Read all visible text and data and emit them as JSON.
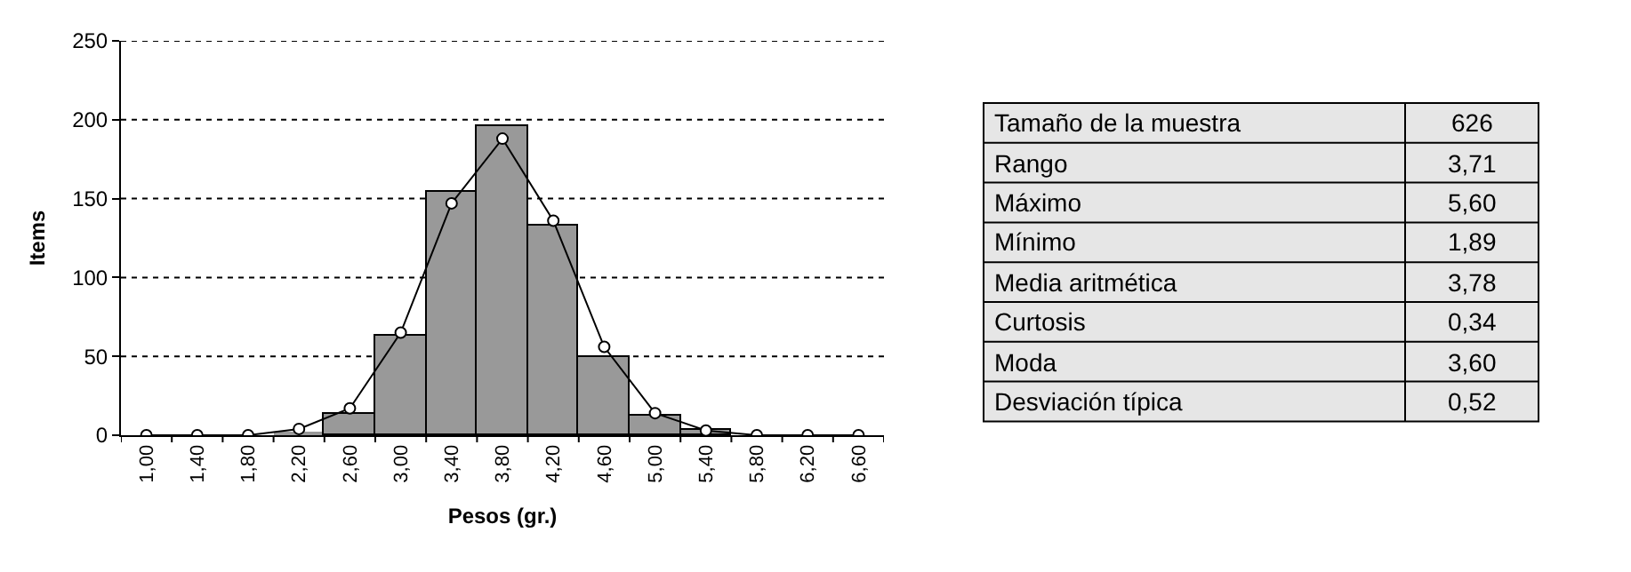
{
  "chart_data": [
    {
      "type": "bar",
      "categories": [
        "1,00",
        "1,40",
        "1,80",
        "2,20",
        "2,60",
        "3,00",
        "3,40",
        "3,80",
        "4,20",
        "4,60",
        "5,00",
        "5,40",
        "5,80",
        "6,20",
        "6,60"
      ],
      "series": [
        {
          "type": "bar",
          "color": "#999999",
          "values": [
            0,
            0,
            null,
            2,
            14,
            63,
            154,
            196,
            133,
            49,
            12,
            3,
            0,
            0,
            0
          ]
        },
        {
          "type": "line",
          "color": "#000000",
          "marker": "circle",
          "values": [
            0,
            0,
            0,
            4,
            17,
            65,
            147,
            188,
            136,
            56,
            14,
            3,
            0,
            0,
            0
          ]
        }
      ],
      "ylim": [
        0,
        250
      ],
      "yticks": [
        0,
        50,
        100,
        150,
        200,
        250
      ],
      "xlabel": "Pesos (gr.)",
      "ylabel": "Items",
      "grid": "y",
      "legend": false
    },
    {
      "type": "other",
      "annotations": [
        "Tamaño de la muestra",
        "626",
        "Rango",
        "3,71",
        "Máximo",
        "5,60",
        "Mínimo",
        "1,89",
        "Media aritmética",
        "3,78",
        "Curtosis",
        "0,34",
        "Moda",
        "3,60",
        "Desviación típica",
        "0,52"
      ]
    }
  ]
}
